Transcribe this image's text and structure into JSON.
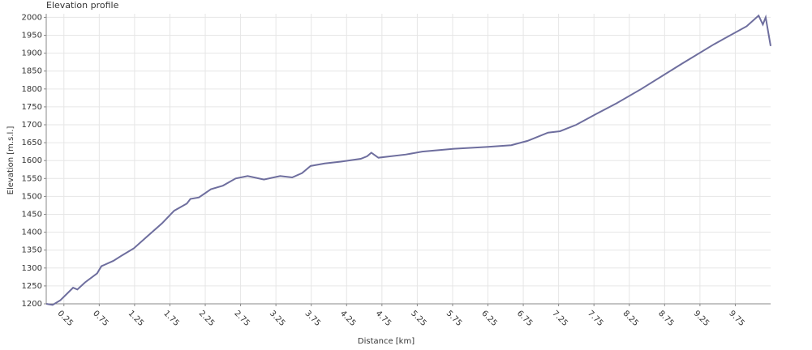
{
  "chart_data": {
    "type": "line",
    "title": "Elevation profile",
    "xlabel": "Distance [km]",
    "ylabel": "Elevation [m.s.l.]",
    "x": [
      0,
      0.09,
      0.2,
      0.38,
      0.44,
      0.55,
      0.72,
      0.78,
      0.95,
      1.07,
      1.24,
      1.41,
      1.64,
      1.81,
      1.99,
      2.04,
      2.16,
      2.33,
      2.5,
      2.68,
      2.85,
      3.08,
      3.31,
      3.48,
      3.62,
      3.74,
      3.94,
      4.17,
      4.45,
      4.54,
      4.6,
      4.7,
      5.09,
      5.32,
      5.77,
      6.23,
      6.58,
      6.81,
      7.1,
      7.27,
      7.5,
      7.78,
      8.07,
      8.42,
      8.99,
      9.45,
      9.91,
      10.08,
      10.14,
      10.18,
      10.25
    ],
    "series": [
      {
        "name": "Elevation",
        "color": "#6e6e9e",
        "values": [
          1200,
          1197,
          1210,
          1245,
          1240,
          1260,
          1285,
          1305,
          1320,
          1335,
          1355,
          1385,
          1425,
          1460,
          1480,
          1493,
          1497,
          1520,
          1530,
          1550,
          1557,
          1547,
          1557,
          1553,
          1565,
          1585,
          1592,
          1597,
          1605,
          1612,
          1622,
          1608,
          1617,
          1625,
          1633,
          1638,
          1643,
          1655,
          1678,
          1682,
          1700,
          1730,
          1760,
          1800,
          1870,
          1925,
          1975,
          2005,
          1980,
          2000,
          1920
        ]
      }
    ],
    "xlim": [
      0,
      10.25
    ],
    "xticks": [
      0.25,
      0.75,
      1.25,
      1.75,
      2.25,
      2.75,
      3.25,
      3.75,
      4.25,
      4.75,
      5.25,
      5.75,
      6.25,
      6.75,
      7.25,
      7.75,
      8.25,
      8.75,
      9.25,
      9.75
    ],
    "ylim": [
      1200,
      2010
    ],
    "yticks": [
      1200,
      1250,
      1300,
      1350,
      1400,
      1450,
      1500,
      1550,
      1600,
      1650,
      1700,
      1750,
      1800,
      1850,
      1900,
      1950,
      2000
    ],
    "grid": true
  }
}
